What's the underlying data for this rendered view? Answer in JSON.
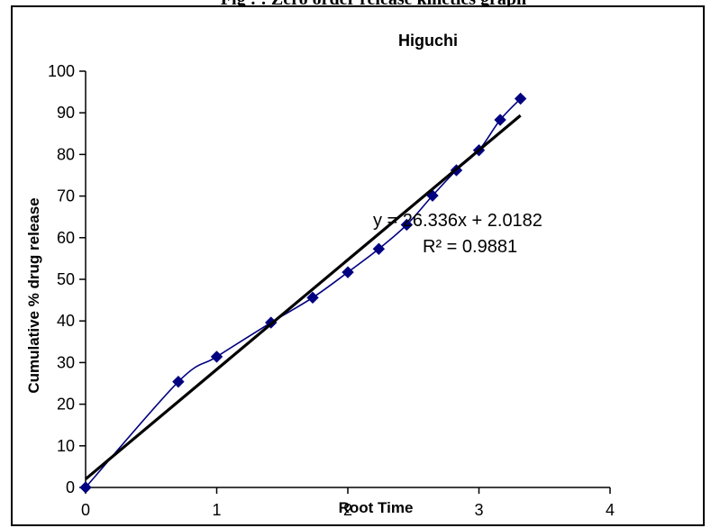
{
  "caption": "Fig : : Zero order release kinetics graph",
  "chart_data": {
    "type": "scatter",
    "title": "Higuchi",
    "xlabel": "Root Time",
    "ylabel": "Cumulative % drug release",
    "xlim": [
      0,
      4
    ],
    "ylim": [
      0,
      100
    ],
    "xticks": [
      "0",
      "1",
      "2",
      "3",
      "4"
    ],
    "yticks": [
      "0",
      "10",
      "20",
      "30",
      "40",
      "50",
      "60",
      "70",
      "80",
      "90",
      "100"
    ],
    "grid": false,
    "series": [
      {
        "marker": "diamond",
        "color": "#000080",
        "x": [
          0,
          0.707,
          1.0,
          1.414,
          1.732,
          2.0,
          2.236,
          2.449,
          2.646,
          2.828,
          3.0,
          3.162,
          3.317
        ],
        "y": [
          0,
          25.4,
          31.4,
          39.6,
          45.6,
          51.7,
          57.3,
          63.1,
          70.1,
          76.2,
          81.0,
          88.3,
          93.4
        ]
      }
    ],
    "trendline": {
      "color": "#000000",
      "slope": 26.336,
      "intercept": 2.0182,
      "x_range": [
        0,
        3.317
      ],
      "equation_label": "y = 26.336x + 2.0182",
      "r2_label": "R² = 0.9881"
    }
  }
}
